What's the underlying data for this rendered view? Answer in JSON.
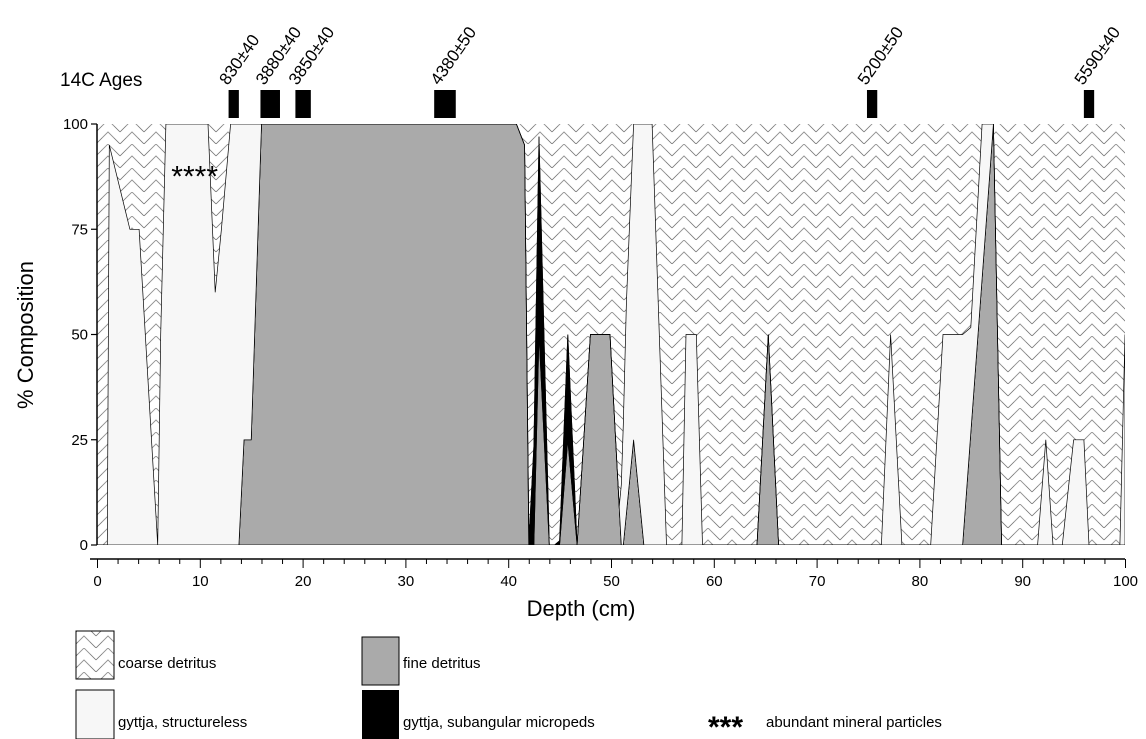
{
  "chart_data": {
    "type": "area",
    "stacked": true,
    "xlabel": "Depth (cm)",
    "ylabel": "% Composition",
    "xlim": [
      0,
      100
    ],
    "ylim": [
      0,
      100
    ],
    "x_ticks": [
      "0",
      "10",
      "20",
      "30",
      "40",
      "50",
      "60",
      "70",
      "80",
      "90",
      "100"
    ],
    "y_ticks": [
      "0",
      "25",
      "50",
      "75",
      "100"
    ],
    "ages_label": "14C Ages",
    "ages": [
      {
        "label": "830±40",
        "depth_from": 12.8,
        "depth_to": 13.8
      },
      {
        "label": "3880±40",
        "depth_from": 15.9,
        "depth_to": 17.8
      },
      {
        "label": "3850±40",
        "depth_from": 19.3,
        "depth_to": 20.8
      },
      {
        "label": "4380±50",
        "depth_from": 32.8,
        "depth_to": 34.9
      },
      {
        "label": "5200±50",
        "depth_from": 74.9,
        "depth_to": 75.9
      },
      {
        "label": "5590±40",
        "depth_from": 96.0,
        "depth_to": 97.0
      }
    ],
    "annotation": {
      "text": "****",
      "x": 9.5,
      "y": 88
    },
    "series": [
      {
        "name": "fine detritus",
        "color": "#aaaaaa",
        "points": [
          [
            0,
            0
          ],
          [
            13.8,
            0
          ],
          [
            14.3,
            25
          ],
          [
            15,
            25
          ],
          [
            16,
            100
          ],
          [
            40.8,
            100
          ],
          [
            41.6,
            95
          ],
          [
            42,
            0
          ],
          [
            42.5,
            0
          ],
          [
            43,
            50
          ],
          [
            44,
            0
          ],
          [
            45,
            0
          ],
          [
            45.8,
            25
          ],
          [
            46.7,
            0
          ],
          [
            48,
            50
          ],
          [
            49.9,
            50
          ],
          [
            51,
            0
          ],
          [
            51.2,
            0
          ],
          [
            52.2,
            25
          ],
          [
            53.2,
            0
          ],
          [
            64.2,
            0
          ],
          [
            65.3,
            50
          ],
          [
            66.3,
            0
          ],
          [
            84.2,
            0
          ],
          [
            87.2,
            100
          ],
          [
            88,
            0
          ],
          [
            100,
            0
          ]
        ]
      },
      {
        "name": "gyttja, subangular micropeds",
        "color": "#000000",
        "points": [
          [
            0,
            0
          ],
          [
            21.9,
            0
          ],
          [
            22.2,
            2
          ],
          [
            24.3,
            0
          ],
          [
            30.1,
            0
          ],
          [
            32.9,
            75
          ],
          [
            34.9,
            0
          ],
          [
            35.5,
            0
          ],
          [
            35.7,
            5
          ],
          [
            36.9,
            0
          ],
          [
            37.4,
            0
          ],
          [
            37.9,
            4
          ],
          [
            38.9,
            25
          ],
          [
            40,
            25
          ],
          [
            40.8,
            0
          ],
          [
            41.6,
            0
          ],
          [
            42.1,
            5
          ],
          [
            43,
            47
          ],
          [
            44,
            0
          ],
          [
            44.5,
            0
          ],
          [
            45,
            1
          ],
          [
            45.8,
            25
          ],
          [
            46.7,
            0
          ],
          [
            100,
            0
          ]
        ]
      },
      {
        "name": "gyttja, structureless",
        "color": "#f7f7f7",
        "points": [
          [
            0,
            0
          ],
          [
            1,
            0
          ],
          [
            1.2,
            95
          ],
          [
            3.2,
            75
          ],
          [
            4.1,
            75
          ],
          [
            5.3,
            25
          ],
          [
            5.9,
            0
          ],
          [
            6.2,
            50
          ],
          [
            6.7,
            100
          ],
          [
            10.8,
            100
          ],
          [
            11.5,
            60
          ],
          [
            12.1,
            75
          ],
          [
            13,
            100
          ],
          [
            13.8,
            100
          ],
          [
            14.3,
            75
          ],
          [
            15,
            75
          ],
          [
            16,
            0
          ],
          [
            50.8,
            0
          ],
          [
            51.5,
            50
          ],
          [
            52.2,
            75
          ],
          [
            53.2,
            100
          ],
          [
            54,
            100
          ],
          [
            55.4,
            0
          ],
          [
            56.9,
            0
          ],
          [
            57.3,
            50
          ],
          [
            58.3,
            50
          ],
          [
            58.9,
            0
          ],
          [
            76.3,
            0
          ],
          [
            77.2,
            50
          ],
          [
            78.3,
            0
          ],
          [
            81.1,
            0
          ],
          [
            82.3,
            50
          ],
          [
            84.2,
            50
          ],
          [
            85,
            25
          ],
          [
            86.1,
            50
          ],
          [
            87.2,
            0
          ],
          [
            91.5,
            0
          ],
          [
            92.3,
            25
          ],
          [
            93,
            0
          ],
          [
            93.9,
            0
          ],
          [
            95,
            25
          ],
          [
            96,
            25
          ],
          [
            96.5,
            0
          ],
          [
            99.5,
            0
          ],
          [
            100,
            50
          ]
        ]
      },
      {
        "name": "coarse detritus",
        "color": "#ffffff",
        "points": [
          [
            0,
            0
          ],
          [
            100,
            0
          ]
        ]
      }
    ]
  },
  "legend": [
    {
      "key": "coarse",
      "label": "coarse detritus"
    },
    {
      "key": "fine",
      "label": "fine detritus"
    },
    {
      "key": "structureless",
      "label": "gyttja, structureless"
    },
    {
      "key": "micropeds",
      "label": "gyttja, subangular micropeds"
    },
    {
      "key": "mineral",
      "symbol": "***",
      "label": "abundant mineral particles"
    }
  ]
}
